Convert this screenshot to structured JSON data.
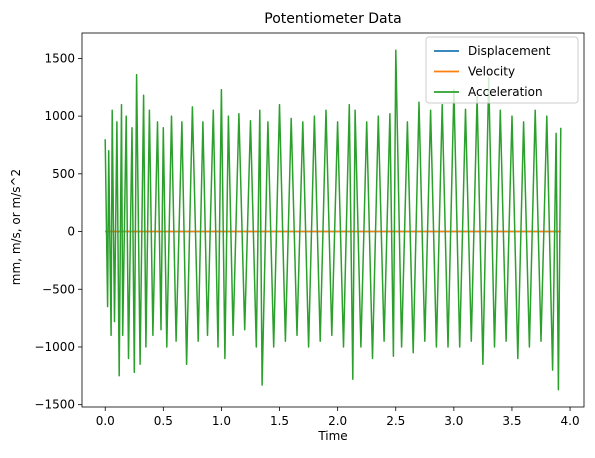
{
  "chart_data": {
    "type": "line",
    "title": "Potentiometer Data",
    "xlabel": "Time",
    "ylabel": "mm, m/s, or m/s^2",
    "xlim": [
      -0.2,
      4.12
    ],
    "ylim": [
      -1520,
      1720
    ],
    "x_ticks": [
      0.0,
      0.5,
      1.0,
      1.5,
      2.0,
      2.5,
      3.0,
      3.5,
      4.0
    ],
    "x_tick_labels": [
      "0.0",
      "0.5",
      "1.0",
      "1.5",
      "2.0",
      "2.5",
      "3.0",
      "3.5",
      "4.0"
    ],
    "y_ticks": [
      -1500,
      -1000,
      -500,
      0,
      500,
      1000,
      1500
    ],
    "y_tick_labels": [
      "−1500",
      "−1000",
      "−500",
      "0",
      "500",
      "1000",
      "1500"
    ],
    "grid": false,
    "legend_position": "top-right",
    "series": [
      {
        "name": "Displacement",
        "color": "#1f77b4",
        "x": [
          0.0,
          3.92
        ],
        "y": [
          0,
          0
        ]
      },
      {
        "name": "Velocity",
        "color": "#ff7f0e",
        "x": [
          0.0,
          3.92
        ],
        "y": [
          0,
          0
        ]
      },
      {
        "name": "Acceleration",
        "color": "#2ca02c",
        "x": [
          0.0,
          0.02,
          0.03,
          0.05,
          0.06,
          0.08,
          0.1,
          0.12,
          0.14,
          0.15,
          0.18,
          0.2,
          0.23,
          0.25,
          0.27,
          0.3,
          0.33,
          0.35,
          0.38,
          0.41,
          0.45,
          0.48,
          0.5,
          0.53,
          0.57,
          0.61,
          0.66,
          0.7,
          0.75,
          0.8,
          0.84,
          0.88,
          0.93,
          0.97,
          1.0,
          1.03,
          1.06,
          1.1,
          1.15,
          1.2,
          1.25,
          1.3,
          1.33,
          1.35,
          1.4,
          1.45,
          1.5,
          1.55,
          1.6,
          1.65,
          1.7,
          1.75,
          1.8,
          1.85,
          1.9,
          1.95,
          2.0,
          2.05,
          2.1,
          2.13,
          2.15,
          2.2,
          2.25,
          2.3,
          2.35,
          2.4,
          2.45,
          2.48,
          2.5,
          2.55,
          2.6,
          2.65,
          2.7,
          2.75,
          2.8,
          2.85,
          2.9,
          2.95,
          3.0,
          3.05,
          3.1,
          3.15,
          3.2,
          3.25,
          3.3,
          3.35,
          3.4,
          3.45,
          3.5,
          3.55,
          3.6,
          3.65,
          3.7,
          3.75,
          3.8,
          3.85,
          3.88,
          3.9,
          3.92
        ],
        "y": [
          800,
          -650,
          700,
          -900,
          1050,
          -780,
          950,
          -1250,
          1100,
          -900,
          1000,
          -1100,
          900,
          -1220,
          1360,
          -1150,
          1180,
          -1000,
          1050,
          -900,
          950,
          -850,
          900,
          -1000,
          1000,
          -950,
          950,
          -1150,
          1080,
          -950,
          950,
          -900,
          1050,
          -1000,
          1230,
          -1100,
          1000,
          -900,
          1020,
          -850,
          960,
          -1000,
          1050,
          -1330,
          950,
          -1000,
          1100,
          -950,
          980,
          -900,
          950,
          -1000,
          1000,
          -950,
          1050,
          -900,
          950,
          -1000,
          1100,
          -1280,
          1050,
          -1000,
          950,
          -1100,
          1000,
          -950,
          1020,
          -1080,
          1570,
          -1000,
          950,
          -1050,
          1120,
          -950,
          1050,
          -1000,
          1100,
          -1000,
          1230,
          -1000,
          1060,
          -950,
          1170,
          -1150,
          1330,
          -1000,
          1050,
          -950,
          1000,
          -1100,
          950,
          -1000,
          1050,
          -950,
          1000,
          -1200,
          850,
          -1370,
          900
        ]
      }
    ]
  }
}
